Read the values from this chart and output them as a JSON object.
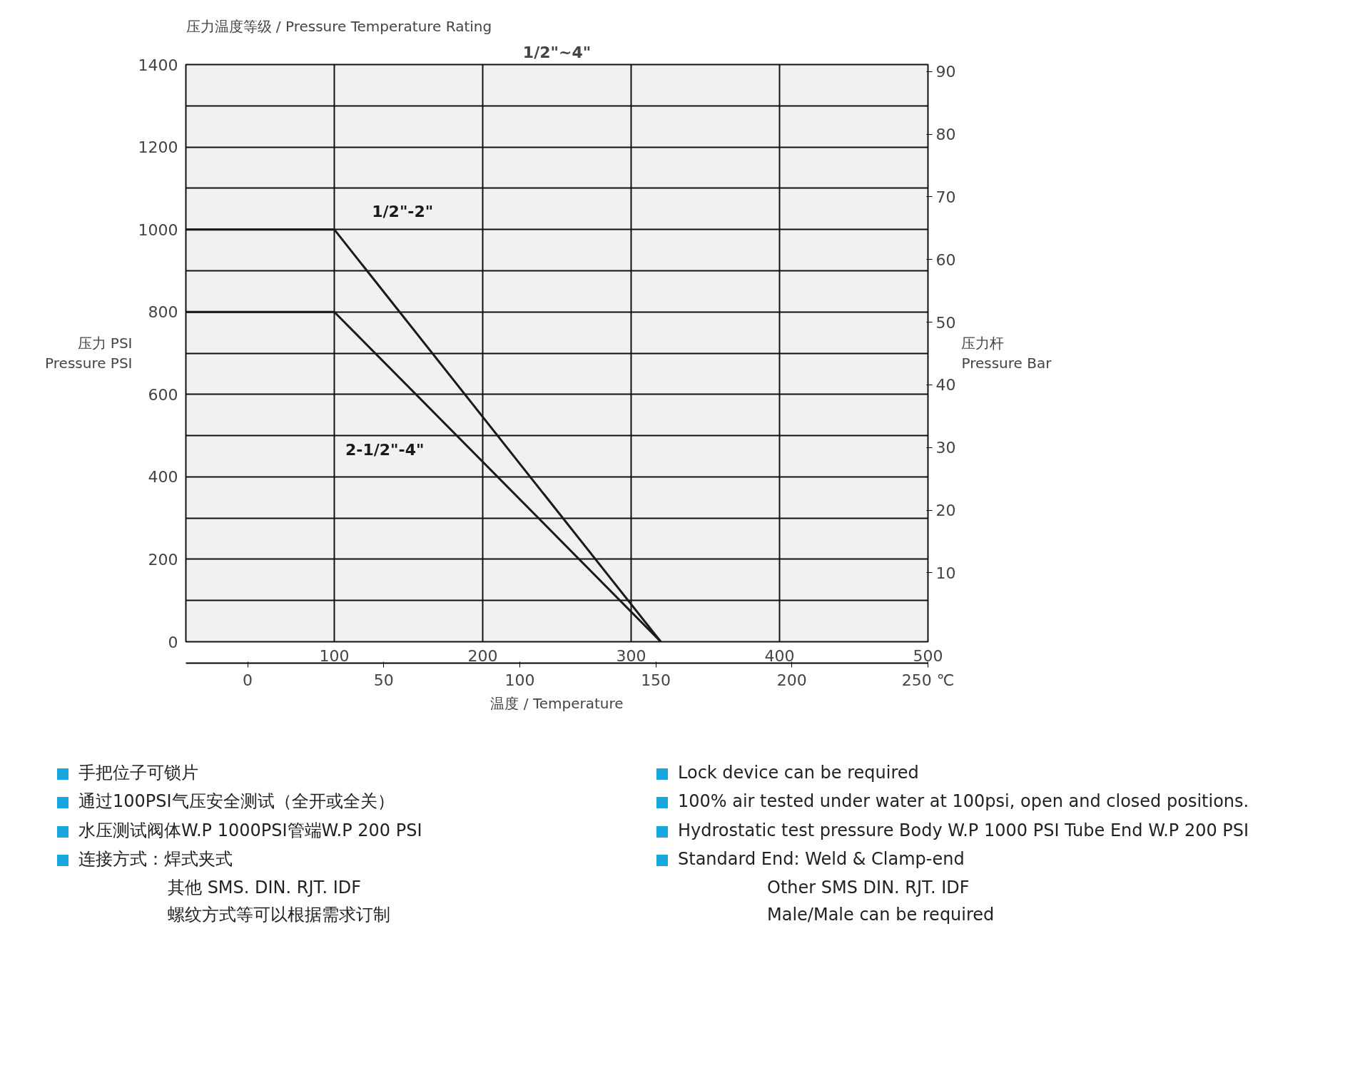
{
  "chart_data": {
    "type": "line",
    "title": "压力温度等级 / Pressure Temperature Rating",
    "subtitle": "1/2\"~4\"",
    "xlabel": "温度 / Temperature",
    "ylabel": "压力 PSI\nPressure PSI",
    "y2label": "压力杆\nPressure Bar",
    "xlim": [
      0,
      500
    ],
    "xticks": [
      100,
      200,
      300,
      400,
      500
    ],
    "x2lim": [
      -22.7,
      250
    ],
    "x2ticks": [
      0,
      50,
      100,
      150,
      200,
      {
        "value": 250,
        "label": "250 ℃"
      }
    ],
    "ylim": [
      0,
      1400
    ],
    "yticks": [
      0,
      {
        "value": 100,
        "label": null
      },
      200,
      {
        "value": 300,
        "label": null
      },
      400,
      {
        "value": 500,
        "label": null
      },
      600,
      {
        "value": 700,
        "label": null
      },
      800,
      {
        "value": 900,
        "label": null
      },
      1000,
      {
        "value": 1100,
        "label": null
      },
      1200,
      {
        "value": 1300,
        "label": null
      },
      1400
    ],
    "y2lim": [
      -1,
      91.1
    ],
    "y2ticks": [
      10,
      20,
      30,
      40,
      50,
      60,
      70,
      80,
      90
    ],
    "grid": true,
    "marker": "none",
    "line_style": "solid",
    "series": [
      {
        "name": "1/2\"-2\"",
        "color": "#1a1a1a",
        "x": [
          0,
          100,
          320
        ],
        "values": [
          1000,
          1000,
          0
        ]
      },
      {
        "name": "2-1/2\"-4\"",
        "color": "#1a1a1a",
        "x": [
          0,
          100,
          320
        ],
        "values": [
          800,
          800,
          0
        ]
      }
    ],
    "annotations": [
      "手把位子可锁片",
      "通过100PSI气压安全测试（全开或全关）",
      "水压测试阀体W.P 1000PSI管端W.P 200 PSI",
      "连接方式：焊式夹式",
      "其他 SMS. DIN. RJT. IDF",
      "螺纹方式等可以根据需求订制",
      "Lock device can be required",
      "100% air tested under water at 100psi, open and closed positions.",
      "Hydrostatic test pressure Body W.P 1000 PSI Tube End W.P 200 PSI",
      "Standard End: Weld & Clamp-end",
      "Other SMS DIN. RJT. IDF",
      "Male/Male can be required"
    ]
  }
}
